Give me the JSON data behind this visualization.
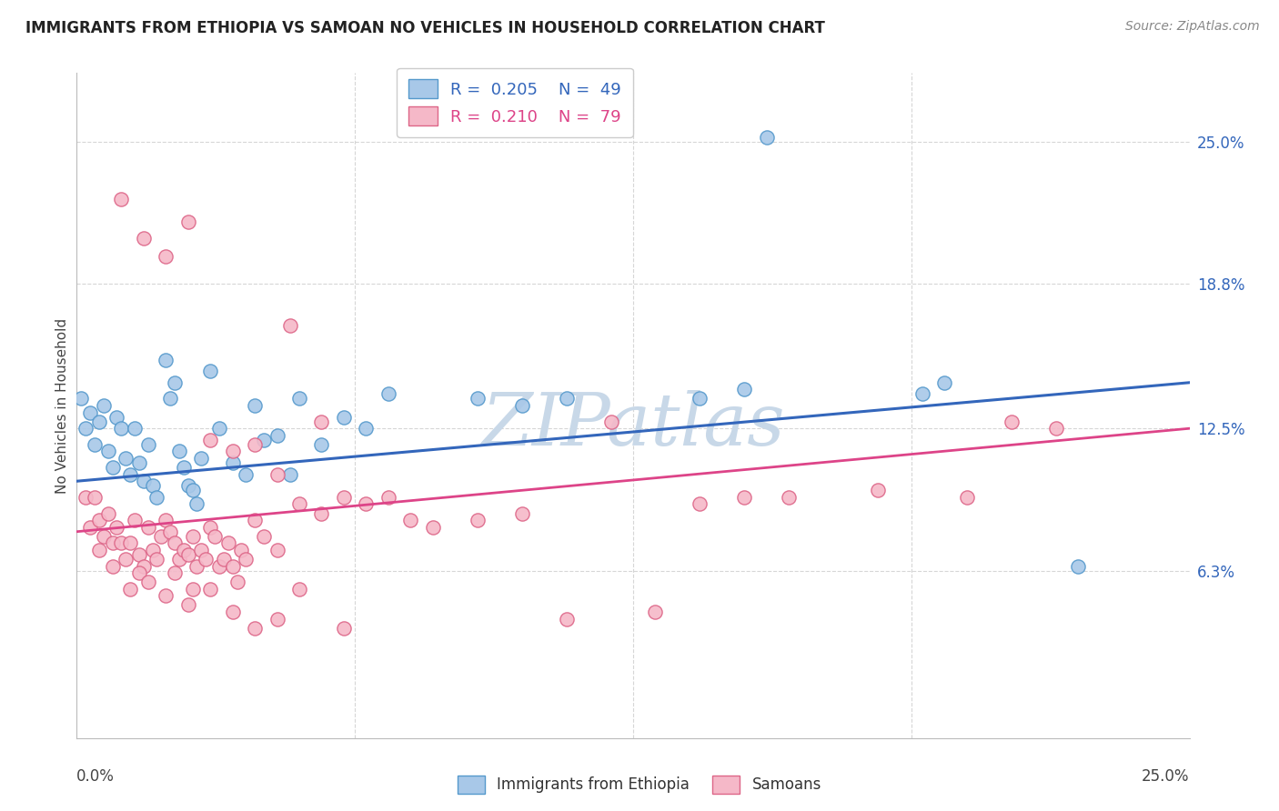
{
  "title": "IMMIGRANTS FROM ETHIOPIA VS SAMOAN NO VEHICLES IN HOUSEHOLD CORRELATION CHART",
  "source": "Source: ZipAtlas.com",
  "ylabel": "No Vehicles in Household",
  "ytick_values": [
    6.3,
    12.5,
    18.8,
    25.0
  ],
  "ytick_labels": [
    "6.3%",
    "12.5%",
    "18.8%",
    "25.0%"
  ],
  "xlim": [
    0.0,
    25.0
  ],
  "ylim": [
    -1.0,
    28.0
  ],
  "blue_scatter_color": "#a8c8e8",
  "blue_edge_color": "#5599cc",
  "pink_scatter_color": "#f5b8c8",
  "pink_edge_color": "#dd6688",
  "line_blue_color": "#3366bb",
  "line_pink_color": "#dd4488",
  "watermark": "ZIPatlas",
  "watermark_color": "#c8d8e8",
  "grid_color": "#cccccc",
  "background_color": "#ffffff",
  "ethiopia_points": [
    [
      0.1,
      13.8
    ],
    [
      0.2,
      12.5
    ],
    [
      0.3,
      13.2
    ],
    [
      0.4,
      11.8
    ],
    [
      0.5,
      12.8
    ],
    [
      0.6,
      13.5
    ],
    [
      0.7,
      11.5
    ],
    [
      0.8,
      10.8
    ],
    [
      0.9,
      13.0
    ],
    [
      1.0,
      12.5
    ],
    [
      1.1,
      11.2
    ],
    [
      1.2,
      10.5
    ],
    [
      1.3,
      12.5
    ],
    [
      1.4,
      11.0
    ],
    [
      1.5,
      10.2
    ],
    [
      1.6,
      11.8
    ],
    [
      1.7,
      10.0
    ],
    [
      1.8,
      9.5
    ],
    [
      2.0,
      15.5
    ],
    [
      2.1,
      13.8
    ],
    [
      2.2,
      14.5
    ],
    [
      2.3,
      11.5
    ],
    [
      2.4,
      10.8
    ],
    [
      2.5,
      10.0
    ],
    [
      2.6,
      9.8
    ],
    [
      2.7,
      9.2
    ],
    [
      2.8,
      11.2
    ],
    [
      3.0,
      15.0
    ],
    [
      3.2,
      12.5
    ],
    [
      3.5,
      11.0
    ],
    [
      3.8,
      10.5
    ],
    [
      4.0,
      13.5
    ],
    [
      4.2,
      12.0
    ],
    [
      4.5,
      12.2
    ],
    [
      4.8,
      10.5
    ],
    [
      5.0,
      13.8
    ],
    [
      5.5,
      11.8
    ],
    [
      6.0,
      13.0
    ],
    [
      6.5,
      12.5
    ],
    [
      7.0,
      14.0
    ],
    [
      9.0,
      13.8
    ],
    [
      11.0,
      13.8
    ],
    [
      14.0,
      13.8
    ],
    [
      15.0,
      14.2
    ],
    [
      19.0,
      14.0
    ],
    [
      19.5,
      14.5
    ],
    [
      22.5,
      6.5
    ],
    [
      15.5,
      25.2
    ],
    [
      10.0,
      13.5
    ]
  ],
  "samoan_points": [
    [
      0.2,
      9.5
    ],
    [
      0.3,
      8.2
    ],
    [
      0.4,
      9.5
    ],
    [
      0.5,
      8.5
    ],
    [
      0.6,
      7.8
    ],
    [
      0.7,
      8.8
    ],
    [
      0.8,
      7.5
    ],
    [
      0.9,
      8.2
    ],
    [
      1.0,
      7.5
    ],
    [
      1.1,
      6.8
    ],
    [
      1.2,
      7.5
    ],
    [
      1.3,
      8.5
    ],
    [
      1.4,
      7.0
    ],
    [
      1.5,
      6.5
    ],
    [
      1.6,
      8.2
    ],
    [
      1.7,
      7.2
    ],
    [
      1.8,
      6.8
    ],
    [
      1.9,
      7.8
    ],
    [
      2.0,
      8.5
    ],
    [
      2.1,
      8.0
    ],
    [
      2.2,
      7.5
    ],
    [
      2.3,
      6.8
    ],
    [
      2.4,
      7.2
    ],
    [
      2.5,
      7.0
    ],
    [
      2.6,
      7.8
    ],
    [
      2.7,
      6.5
    ],
    [
      2.8,
      7.2
    ],
    [
      2.9,
      6.8
    ],
    [
      3.0,
      8.2
    ],
    [
      3.1,
      7.8
    ],
    [
      3.2,
      6.5
    ],
    [
      3.3,
      6.8
    ],
    [
      3.4,
      7.5
    ],
    [
      3.5,
      6.5
    ],
    [
      3.6,
      5.8
    ],
    [
      3.7,
      7.2
    ],
    [
      3.8,
      6.8
    ],
    [
      4.0,
      8.5
    ],
    [
      4.2,
      7.8
    ],
    [
      4.5,
      7.2
    ],
    [
      1.0,
      22.5
    ],
    [
      1.5,
      20.8
    ],
    [
      2.0,
      20.0
    ],
    [
      2.5,
      21.5
    ],
    [
      4.8,
      17.0
    ],
    [
      5.5,
      12.8
    ],
    [
      6.0,
      9.5
    ],
    [
      7.0,
      9.5
    ],
    [
      8.0,
      8.2
    ],
    [
      4.5,
      10.5
    ],
    [
      5.0,
      9.2
    ],
    [
      3.0,
      12.0
    ],
    [
      3.5,
      11.5
    ],
    [
      4.0,
      11.8
    ],
    [
      5.5,
      8.8
    ],
    [
      6.5,
      9.2
    ],
    [
      7.5,
      8.5
    ],
    [
      9.0,
      8.5
    ],
    [
      10.0,
      8.8
    ],
    [
      12.0,
      12.8
    ],
    [
      14.0,
      9.2
    ],
    [
      15.0,
      9.5
    ],
    [
      16.0,
      9.5
    ],
    [
      18.0,
      9.8
    ],
    [
      2.0,
      5.2
    ],
    [
      2.5,
      4.8
    ],
    [
      3.0,
      5.5
    ],
    [
      3.5,
      4.5
    ],
    [
      4.0,
      3.8
    ],
    [
      4.5,
      4.2
    ],
    [
      5.0,
      5.5
    ],
    [
      6.0,
      3.8
    ],
    [
      11.0,
      4.2
    ],
    [
      13.0,
      4.5
    ],
    [
      20.0,
      9.5
    ],
    [
      21.0,
      12.8
    ],
    [
      22.0,
      12.5
    ],
    [
      0.5,
      7.2
    ],
    [
      0.8,
      6.5
    ],
    [
      1.2,
      5.5
    ],
    [
      1.4,
      6.2
    ],
    [
      1.6,
      5.8
    ],
    [
      2.2,
      6.2
    ],
    [
      2.6,
      5.5
    ]
  ]
}
